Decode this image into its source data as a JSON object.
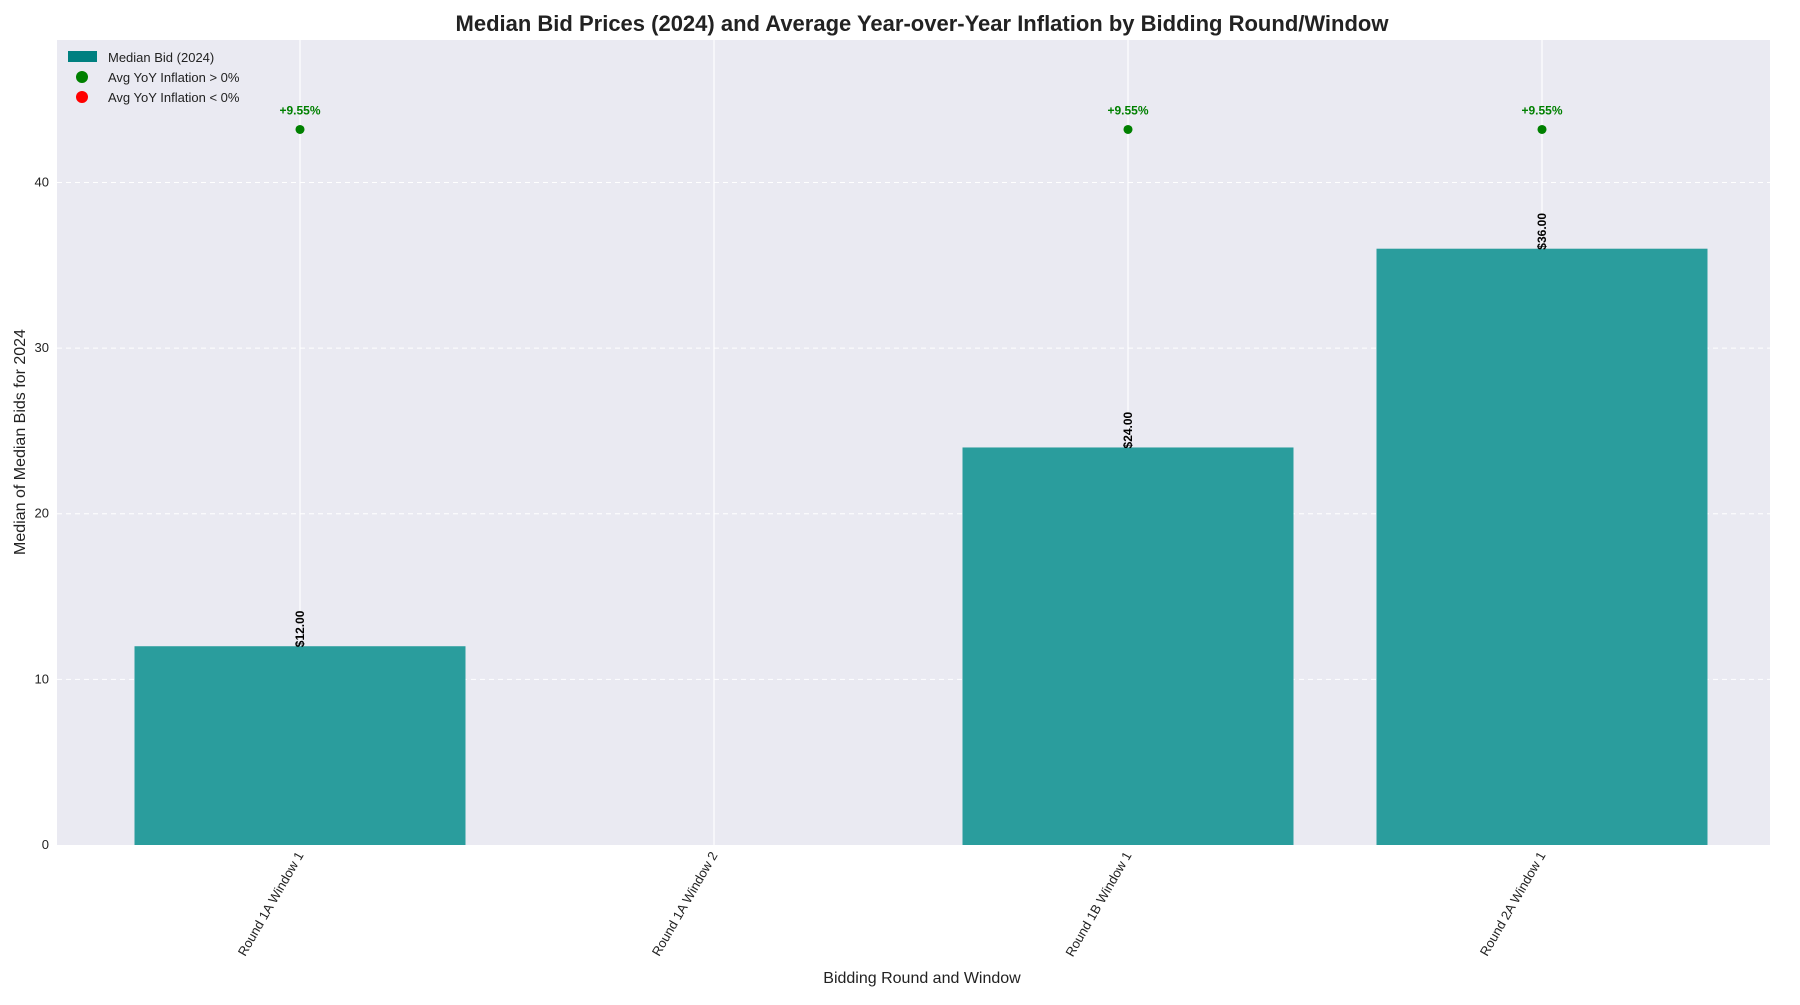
{
  "chart_data": {
    "type": "bar",
    "title": "Median Bid Prices (2024) and Average Year-over-Year Inflation by Bidding Round/Window",
    "xlabel": "Bidding Round and Window",
    "ylabel": "Median of Median Bids for 2024",
    "categories": [
      "Round 1A Window 1",
      "Round 1A Window 2",
      "Round 1B Window 1",
      "Round 2A Window 1"
    ],
    "series": [
      {
        "name": "Median Bid (2024)",
        "values": [
          12.0,
          null,
          24.0,
          36.0
        ],
        "color": "#2a9d9d"
      }
    ],
    "bar_labels": [
      "$12.00",
      "",
      "$24.00",
      "$36.00"
    ],
    "inflation": {
      "values": [
        9.55,
        null,
        9.55,
        9.55
      ],
      "labels": [
        "+9.55%",
        "",
        "+9.55%",
        "+9.55%"
      ],
      "marker_y": 43.2,
      "positive_color": "#008000",
      "negative_color": "#ff0000"
    },
    "yticks": [
      0,
      10,
      20,
      30,
      40
    ],
    "ylim": [
      0,
      48.6
    ],
    "grid": true,
    "legend": {
      "placement": "top-left",
      "entries": [
        "Median Bid (2024)",
        "Avg YoY Inflation > 0%",
        "Avg YoY Inflation < 0%"
      ]
    },
    "colors": {
      "background": "#eaeaf2",
      "grid": "#ffffff",
      "bar": "#2a9d9d",
      "legend_bar": "#008080"
    }
  }
}
